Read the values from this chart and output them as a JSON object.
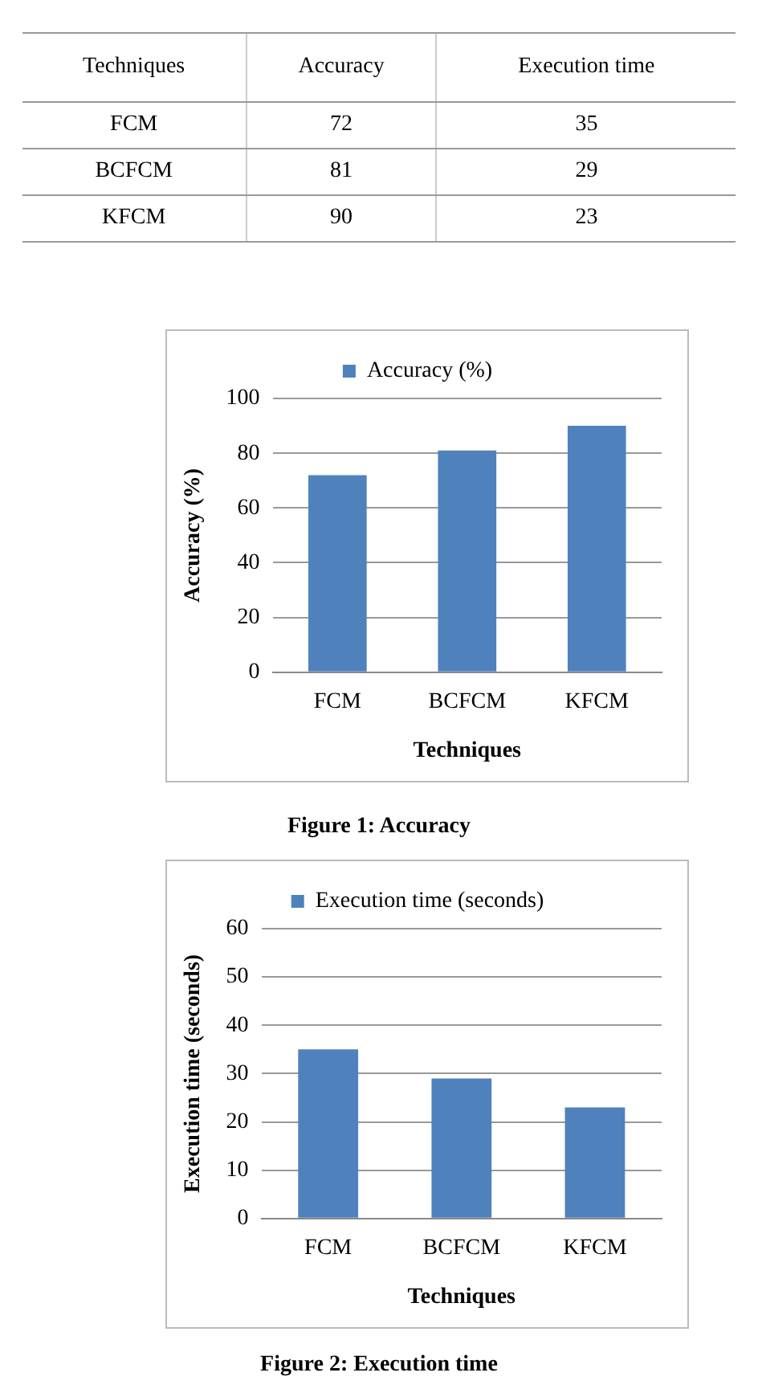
{
  "chart_data": [
    {
      "type": "other",
      "annotations": [
        "Techniques",
        "Accuracy",
        "Execution time",
        "FCM",
        "72",
        "35",
        "BCFCM",
        "81",
        "29",
        "KFCM",
        "90",
        "23"
      ]
    },
    {
      "type": "bar",
      "categories": [
        "FCM",
        "BCFCM",
        "KFCM"
      ],
      "series": [
        {
          "name": "Accuracy (%)",
          "color": "#4f81bd",
          "values": [
            72,
            81,
            90
          ]
        }
      ],
      "ylim": [
        0,
        100
      ],
      "yticks": [
        0,
        20,
        40,
        60,
        80,
        100
      ],
      "ylabel": "Accuracy (%)",
      "xlabel": "Techniques",
      "grid": "y",
      "legend": "top",
      "annotations": [
        "Figure 1: Accuracy"
      ]
    },
    {
      "type": "bar",
      "categories": [
        "FCM",
        "BCFCM",
        "KFCM"
      ],
      "series": [
        {
          "name": "Execution time (seconds)",
          "color": "#4f81bd",
          "values": [
            35,
            29,
            23
          ]
        }
      ],
      "ylim": [
        0,
        60
      ],
      "yticks": [
        0,
        10,
        20,
        30,
        40,
        50,
        60
      ],
      "ylabel": "Execution time (seconds)",
      "xlabel": "Techniques",
      "grid": "y",
      "legend": "top",
      "annotations": [
        "Figure 2: Execution time"
      ]
    }
  ]
}
